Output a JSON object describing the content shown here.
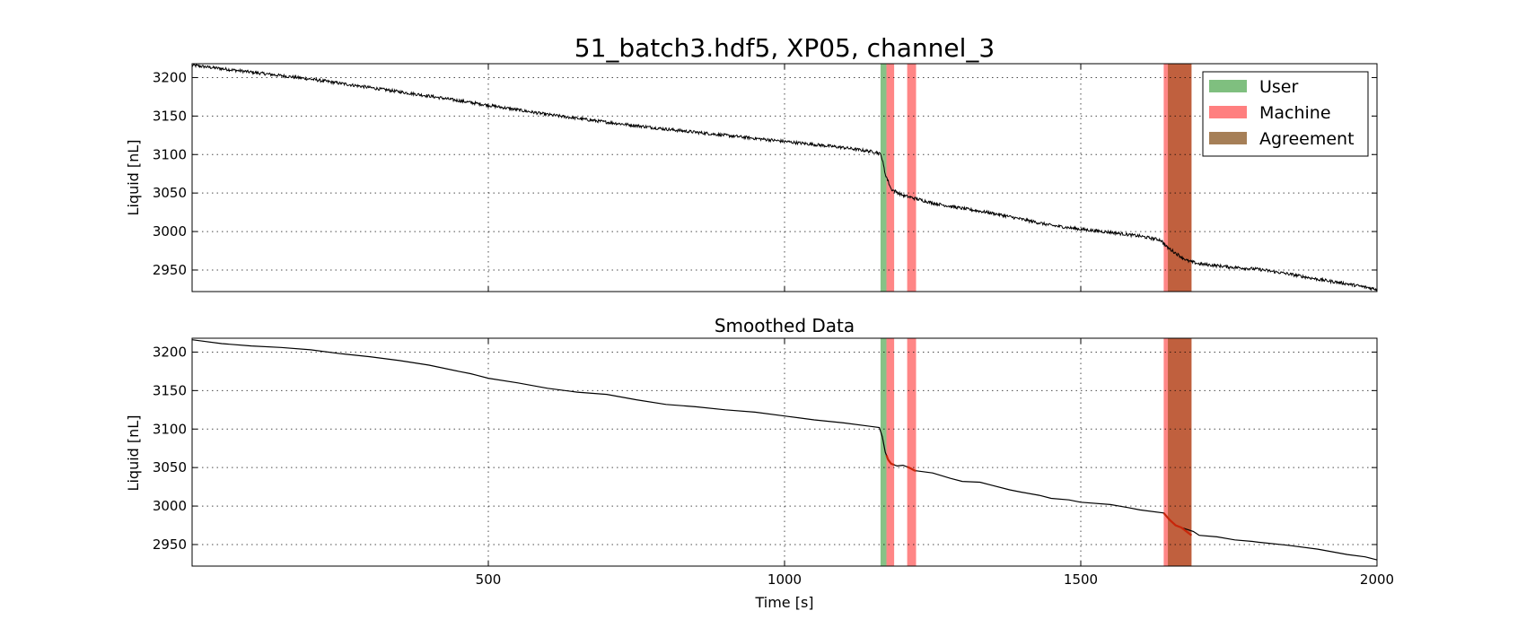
{
  "chart_data": [
    {
      "type": "line",
      "title": "51_batch3.hdf5, XP05, channel_3",
      "xlabel": "",
      "ylabel": "Liquid [nL]",
      "xlim": [
        0,
        2000
      ],
      "ylim": [
        2922,
        3218
      ],
      "xticks": [
        500,
        1000,
        1500,
        2000
      ],
      "yticks": [
        2950,
        3000,
        3050,
        3100,
        3150,
        3200
      ],
      "grid": true,
      "legend": {
        "placement": "top-right",
        "entries": [
          {
            "name": "User",
            "color": "#7fbf7f"
          },
          {
            "name": "Machine",
            "color": "#ff7f7f"
          },
          {
            "name": "Agreement",
            "color": "#a67f57"
          }
        ]
      },
      "spans": [
        {
          "kind": "user",
          "x0": 1162,
          "x1": 1172,
          "color": "#7fbf7f"
        },
        {
          "kind": "machine",
          "x0": 1172,
          "x1": 1185,
          "color": "#ff7f7f"
        },
        {
          "kind": "machine",
          "x0": 1207,
          "x1": 1222,
          "color": "#ff7f7f"
        },
        {
          "kind": "machine",
          "x0": 1640,
          "x1": 1647,
          "color": "#ff7f7f"
        },
        {
          "kind": "agreement",
          "x0": 1647,
          "x1": 1687,
          "color": "#c0603e"
        }
      ],
      "series": [
        {
          "color": "#000000",
          "x": [
            0,
            100,
            200,
            300,
            400,
            500,
            600,
            700,
            800,
            900,
            1000,
            1100,
            1155,
            1163,
            1170,
            1180,
            1200,
            1250,
            1300,
            1350,
            1400,
            1450,
            1500,
            1550,
            1600,
            1635,
            1645,
            1660,
            1680,
            1700,
            1750,
            1800,
            1850,
            1900,
            1950,
            2000
          ],
          "y": [
            3216,
            3207,
            3198,
            3187,
            3176,
            3164,
            3152,
            3142,
            3133,
            3125,
            3117,
            3109,
            3103,
            3100,
            3075,
            3055,
            3047,
            3037,
            3030,
            3024,
            3016,
            3008,
            3003,
            2999,
            2994,
            2989,
            2980,
            2972,
            2962,
            2958,
            2954,
            2951,
            2945,
            2938,
            2932,
            2925
          ],
          "noise": true
        }
      ]
    },
    {
      "type": "line",
      "title": "Smoothed Data",
      "xlabel": "Time [s]",
      "ylabel": "Liquid [nL]",
      "xlim": [
        0,
        2000
      ],
      "ylim": [
        2922,
        3218
      ],
      "xticks": [
        500,
        1000,
        1500,
        2000
      ],
      "yticks": [
        2950,
        3000,
        3050,
        3100,
        3150,
        3200
      ],
      "grid": true,
      "spans": [
        {
          "kind": "user",
          "x0": 1162,
          "x1": 1172,
          "color": "#7fbf7f"
        },
        {
          "kind": "machine",
          "x0": 1172,
          "x1": 1185,
          "color": "#ff7f7f"
        },
        {
          "kind": "machine",
          "x0": 1207,
          "x1": 1222,
          "color": "#ff7f7f"
        },
        {
          "kind": "machine",
          "x0": 1640,
          "x1": 1647,
          "color": "#ff7f7f"
        },
        {
          "kind": "agreement",
          "x0": 1647,
          "x1": 1687,
          "color": "#c0603e"
        }
      ],
      "series": [
        {
          "color": "#000000",
          "x": [
            0,
            50,
            100,
            150,
            200,
            250,
            300,
            350,
            400,
            450,
            470,
            480,
            500,
            550,
            600,
            650,
            700,
            750,
            800,
            850,
            900,
            950,
            1000,
            1050,
            1100,
            1140,
            1160,
            1165,
            1170,
            1175,
            1180,
            1190,
            1200,
            1210,
            1220,
            1250,
            1280,
            1300,
            1330,
            1350,
            1380,
            1400,
            1430,
            1450,
            1480,
            1500,
            1550,
            1580,
            1600,
            1640,
            1650,
            1660,
            1670,
            1690,
            1700,
            1730,
            1760,
            1790,
            1800,
            1850,
            1900,
            1950,
            1980,
            2000
          ],
          "y": [
            3216,
            3211,
            3208,
            3206,
            3203,
            3198,
            3194,
            3189,
            3183,
            3175,
            3172,
            3170,
            3166,
            3160,
            3153,
            3148,
            3145,
            3138,
            3132,
            3129,
            3125,
            3122,
            3117,
            3112,
            3108,
            3104,
            3102,
            3090,
            3070,
            3060,
            3055,
            3052,
            3053,
            3050,
            3046,
            3043,
            3036,
            3032,
            3031,
            3027,
            3021,
            3018,
            3014,
            3010,
            3008,
            3005,
            3002,
            2998,
            2995,
            2991,
            2982,
            2975,
            2972,
            2967,
            2962,
            2960,
            2956,
            2954,
            2953,
            2949,
            2944,
            2937,
            2934,
            2930
          ]
        },
        {
          "color": "#c8260a",
          "x": [
            1172,
            1185,
            1207,
            1222
          ],
          "y": [
            3058,
            3053,
            3053,
            3047
          ],
          "segments": [
            [
              1172,
              1185
            ],
            [
              1207,
              1222
            ]
          ]
        },
        {
          "color": "#c8260a",
          "x": [
            1640,
            1650,
            1660,
            1670,
            1687
          ],
          "y": [
            2991,
            2982,
            2975,
            2972,
            2962
          ]
        }
      ]
    }
  ]
}
